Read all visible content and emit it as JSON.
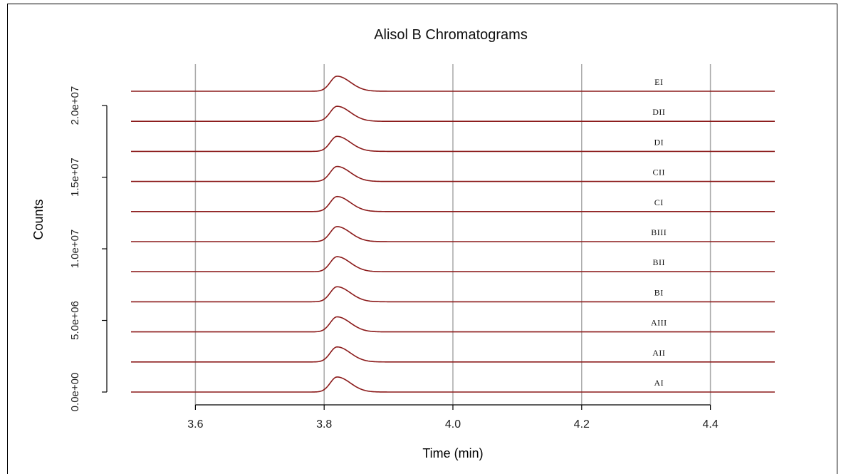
{
  "chart_data": {
    "type": "line",
    "title": "Alisol B Chromatograms",
    "xlabel": "Time (min)",
    "ylabel": "Counts",
    "xlim": [
      3.5,
      4.5
    ],
    "ylim": [
      0,
      21000000
    ],
    "x_ticks": [
      3.6,
      3.8,
      4.0,
      4.2,
      4.4
    ],
    "x_tick_labels": [
      "3.6",
      "3.8",
      "4.0",
      "4.2",
      "4.4"
    ],
    "y_ticks": [
      0,
      5000000,
      10000000,
      15000000,
      20000000
    ],
    "y_tick_labels": [
      "0.0e+00",
      "5.0e+06",
      "1.0e+07",
      "1.5e+07",
      "2.0e+07"
    ],
    "grid": "vertical",
    "line_color": "#8b1a1a",
    "grid_color": "#a8a8a8",
    "peak_retention_time": 3.82,
    "peak_height": 1050000,
    "series": [
      {
        "name": "AI",
        "offset": 0
      },
      {
        "name": "AII",
        "offset": 2100000
      },
      {
        "name": "AIII",
        "offset": 4200000
      },
      {
        "name": "BI",
        "offset": 6300000
      },
      {
        "name": "BII",
        "offset": 8400000
      },
      {
        "name": "BIII",
        "offset": 10500000
      },
      {
        "name": "CI",
        "offset": 12600000
      },
      {
        "name": "CII",
        "offset": 14700000
      },
      {
        "name": "DI",
        "offset": 16800000
      },
      {
        "name": "DII",
        "offset": 18900000
      },
      {
        "name": "EI",
        "offset": 21000000
      }
    ]
  }
}
